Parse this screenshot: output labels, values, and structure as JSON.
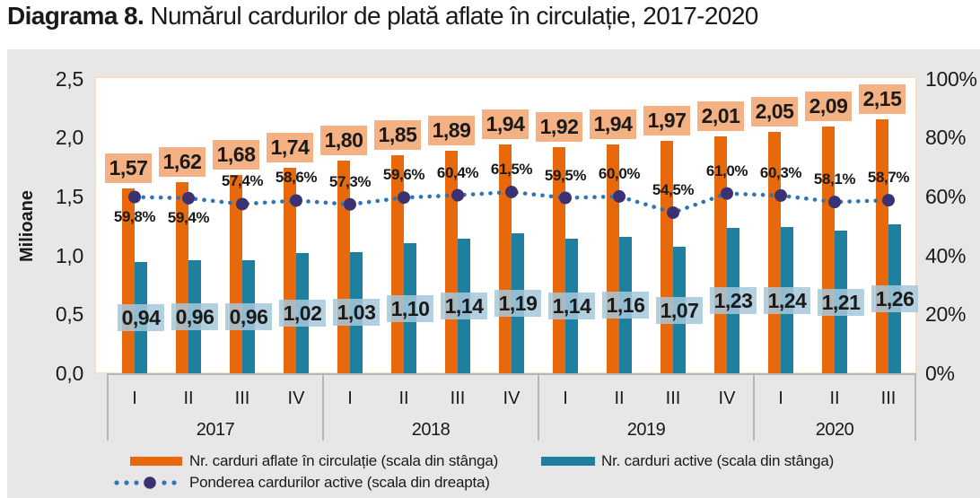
{
  "title": {
    "prefix": "Diagrama 8.",
    "rest": " Numărul cardurilor de plată aflate în circulație, 2017-2020"
  },
  "y_axis_left": {
    "title": "Milioane",
    "ticks": [
      "2,5",
      "2,0",
      "1,5",
      "1,0",
      "0,5",
      "0,0"
    ]
  },
  "y_axis_right": {
    "ticks": [
      "100%",
      "80%",
      "60%",
      "40%",
      "20%",
      "0%"
    ]
  },
  "legend": {
    "circulatie": "Nr. carduri aflate în circulație (scala din stânga)",
    "active": "Nr. carduri active (scala din stânga)",
    "pondere": "Ponderea cardurilor active (scala din dreapta)"
  },
  "colors": {
    "circulatie_bar": "#e8690b",
    "circulatie_label_bg": "#f4b183",
    "active_bar": "#1e7f9e",
    "active_label_bg": "rgba(164,200,219,0.85)",
    "line_dots": "#2e75b6",
    "line_marker": "#3b3274",
    "panel_bg": "#e7e7e7"
  },
  "chart_data": {
    "type": "bar",
    "note": "grouped bars (left axis, millions) + dotted line with markers (right axis, %)",
    "years": [
      {
        "label": "2017",
        "quarters": [
          "I",
          "II",
          "III",
          "IV"
        ]
      },
      {
        "label": "2018",
        "quarters": [
          "I",
          "II",
          "III",
          "IV"
        ]
      },
      {
        "label": "2019",
        "quarters": [
          "I",
          "II",
          "III",
          "IV"
        ]
      },
      {
        "label": "2020",
        "quarters": [
          "I",
          "II",
          "III"
        ]
      }
    ],
    "ylim_left": [
      0,
      2.5
    ],
    "ylim_right": [
      0,
      100
    ],
    "series": [
      {
        "name": "Nr. carduri aflate în circulație (scala din stânga)",
        "type": "bar",
        "axis": "left",
        "values": [
          1.57,
          1.62,
          1.68,
          1.74,
          1.8,
          1.85,
          1.89,
          1.94,
          1.92,
          1.94,
          1.97,
          2.01,
          2.05,
          2.09,
          2.15
        ],
        "labels": [
          "1,57",
          "1,62",
          "1,68",
          "1,74",
          "1,80",
          "1,85",
          "1,89",
          "1,94",
          "1,92",
          "1,94",
          "1,97",
          "2,01",
          "2,05",
          "2,09",
          "2,15"
        ]
      },
      {
        "name": "Nr. carduri active (scala din stânga)",
        "type": "bar",
        "axis": "left",
        "values": [
          0.94,
          0.96,
          0.96,
          1.02,
          1.03,
          1.1,
          1.14,
          1.19,
          1.14,
          1.16,
          1.07,
          1.23,
          1.24,
          1.21,
          1.26
        ],
        "labels": [
          "0,94",
          "0,96",
          "0,96",
          "1,02",
          "1,03",
          "1,10",
          "1,14",
          "1,19",
          "1,14",
          "1,16",
          "1,07",
          "1,23",
          "1,24",
          "1,21",
          "1,26"
        ]
      },
      {
        "name": "Ponderea cardurilor active (scala din dreapta)",
        "type": "line",
        "axis": "right",
        "values": [
          59.8,
          59.4,
          57.4,
          58.6,
          57.3,
          59.6,
          60.4,
          61.5,
          59.5,
          60.0,
          54.5,
          61.0,
          60.3,
          58.1,
          58.7
        ],
        "labels": [
          "59,8%",
          "59,4%",
          "57,4%",
          "58,6%",
          "57,3%",
          "59,6%",
          "60,4%",
          "61,5%",
          "59,5%",
          "60,0%",
          "54,5%",
          "61,0%",
          "60,3%",
          "58,1%",
          "58,7%"
        ],
        "label_below": [
          true,
          true,
          false,
          false,
          false,
          false,
          false,
          false,
          false,
          false,
          false,
          false,
          false,
          false,
          false
        ]
      }
    ]
  }
}
